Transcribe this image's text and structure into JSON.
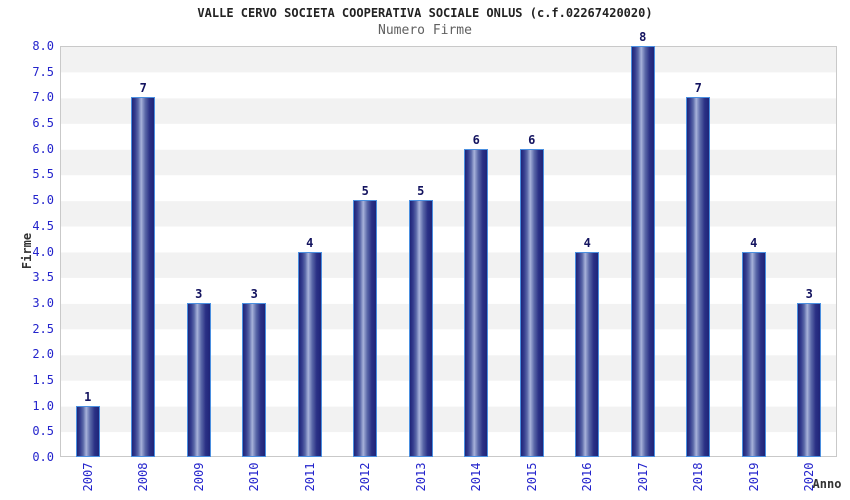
{
  "chart_data": {
    "type": "bar",
    "title": "VALLE CERVO SOCIETA COOPERATIVA SOCIALE ONLUS (c.f.02267420020)",
    "subtitle": "Numero Firme",
    "xlabel": "Anno",
    "ylabel": "Firme",
    "categories": [
      "2007",
      "2008",
      "2009",
      "2010",
      "2011",
      "2012",
      "2013",
      "2014",
      "2015",
      "2016",
      "2017",
      "2018",
      "2019",
      "2020"
    ],
    "values": [
      1,
      7,
      3,
      3,
      4,
      5,
      5,
      6,
      6,
      4,
      8,
      7,
      4,
      3
    ],
    "ylim": [
      0,
      8
    ],
    "ytick_step": 0.5,
    "ytick_labels": [
      "0.0",
      "0.5",
      "1.0",
      "1.5",
      "2.0",
      "2.5",
      "3.0",
      "3.5",
      "4.0",
      "4.5",
      "5.0",
      "5.5",
      "6.0",
      "6.5",
      "7.0",
      "7.5",
      "8.0"
    ],
    "grid": "alternating-horizontal-bands",
    "legend": "none",
    "colors": {
      "bar_dark": "#1f2478",
      "bar_mid": "#5a68a8",
      "bar_light": "#a7b2da",
      "bar_outline": "#4a8fe0",
      "tick_label": "#2424cc",
      "value_label": "#13135f",
      "band_gray": "#f2f2f2",
      "band_white": "#ffffff",
      "plot_border": "#c9c9c9",
      "title_color": "#222222",
      "subtitle_color": "#606060",
      "axis_title_color": "#333333"
    }
  }
}
